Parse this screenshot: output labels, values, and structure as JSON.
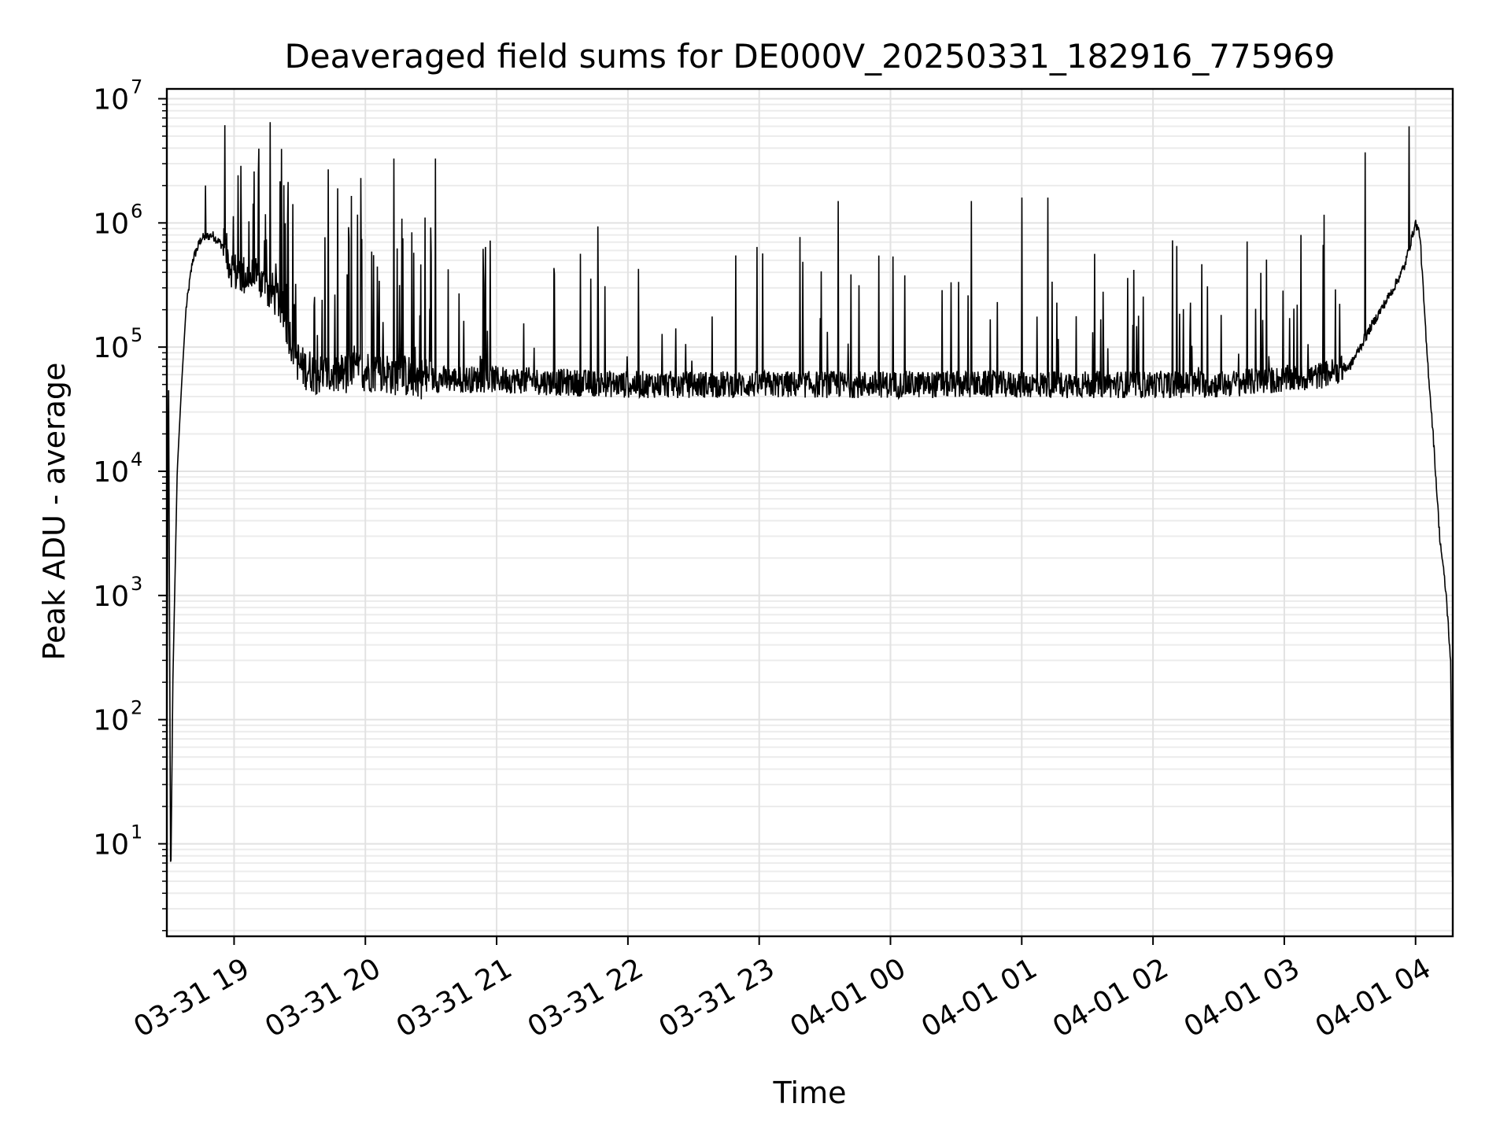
{
  "chart_data": {
    "type": "line",
    "title": "Deaveraged field sums for DE000V_20250331_182916_775969",
    "xlabel": "Time",
    "ylabel": "Peak ADU - average",
    "yscale": "log",
    "ylim": [
      1.8,
      12000000
    ],
    "xlim": [
      "2025-03-31 18:29:16",
      "2025-04-01 04:17:00"
    ],
    "grid": "major and minor",
    "line_color": "#000000",
    "y_ticks": [
      {
        "base": "10",
        "exp": "1",
        "value": 10
      },
      {
        "base": "10",
        "exp": "2",
        "value": 100
      },
      {
        "base": "10",
        "exp": "3",
        "value": 1000
      },
      {
        "base": "10",
        "exp": "4",
        "value": 10000
      },
      {
        "base": "10",
        "exp": "5",
        "value": 100000
      },
      {
        "base": "10",
        "exp": "6",
        "value": 1000000
      },
      {
        "base": "10",
        "exp": "7",
        "value": 10000000
      }
    ],
    "x_ticks": [
      {
        "label": "03-31 19",
        "time": "2025-03-31 19:00"
      },
      {
        "label": "03-31 20",
        "time": "2025-03-31 20:00"
      },
      {
        "label": "03-31 21",
        "time": "2025-03-31 21:00"
      },
      {
        "label": "03-31 22",
        "time": "2025-03-31 22:00"
      },
      {
        "label": "03-31 23",
        "time": "2025-03-31 23:00"
      },
      {
        "label": "04-01 00",
        "time": "2025-04-01 00:00"
      },
      {
        "label": "04-01 01",
        "time": "2025-04-01 01:00"
      },
      {
        "label": "04-01 02",
        "time": "2025-04-01 02:00"
      },
      {
        "label": "04-01 03",
        "time": "2025-04-01 03:00"
      },
      {
        "label": "04-01 04",
        "time": "2025-04-01 04:00"
      }
    ],
    "series": [
      {
        "x": [
          "2025-03-31 18:29",
          "2025-03-31 18:30",
          "2025-03-31 18:31",
          "2025-03-31 18:32",
          "2025-03-31 18:34",
          "2025-03-31 18:36",
          "2025-03-31 18:38",
          "2025-03-31 18:41",
          "2025-03-31 18:45",
          "2025-03-31 18:50",
          "2025-03-31 18:55",
          "2025-03-31 19:00",
          "2025-03-31 19:10",
          "2025-03-31 19:20",
          "2025-03-31 19:30",
          "2025-03-31 19:40",
          "2025-03-31 19:50",
          "2025-03-31 20:00",
          "2025-03-31 20:15",
          "2025-03-31 20:30",
          "2025-03-31 21:00",
          "2025-03-31 21:30",
          "2025-03-31 22:00",
          "2025-03-31 22:30",
          "2025-03-31 23:00",
          "2025-03-31 23:30",
          "2025-04-01 00:00",
          "2025-04-01 00:30",
          "2025-04-01 01:00",
          "2025-04-01 01:30",
          "2025-04-01 02:00",
          "2025-04-01 02:30",
          "2025-04-01 03:00",
          "2025-04-01 03:15",
          "2025-04-01 03:30",
          "2025-04-01 03:40",
          "2025-04-01 03:50",
          "2025-04-01 03:55",
          "2025-04-01 04:00",
          "2025-04-01 04:02",
          "2025-04-01 04:05",
          "2025-04-01 04:08",
          "2025-04-01 04:11",
          "2025-04-01 04:14",
          "2025-04-01 04:16",
          "2025-04-01 04:17"
        ],
        "y": [
          3,
          100000,
          4,
          200,
          10000,
          50000,
          200000,
          500000,
          750000,
          800000,
          650000,
          400000,
          350000,
          250000,
          70000,
          60000,
          60000,
          65000,
          60000,
          55000,
          55000,
          52000,
          50000,
          50000,
          50000,
          50000,
          50000,
          50000,
          50000,
          50000,
          50000,
          50000,
          55000,
          58000,
          70000,
          150000,
          300000,
          450000,
          1000000,
          800000,
          100000,
          20000,
          3000,
          1000,
          300,
          3
        ]
      }
    ],
    "spikes": [
      {
        "time": "2025-03-31 18:47",
        "value": 2000000
      },
      {
        "time": "2025-03-31 19:11",
        "value": 2500000
      },
      {
        "time": "2025-03-31 19:43",
        "value": 2700000
      },
      {
        "time": "2025-03-31 19:58",
        "value": 2300000
      },
      {
        "time": "2025-03-31 20:13",
        "value": 3300000
      },
      {
        "time": "2025-03-31 20:32",
        "value": 3300000
      },
      {
        "time": "2025-03-31 23:36",
        "value": 1500000
      },
      {
        "time": "2025-04-01 00:37",
        "value": 1500000
      },
      {
        "time": "2025-04-01 01:00",
        "value": 1600000
      },
      {
        "time": "2025-04-01 01:12",
        "value": 1600000
      },
      {
        "time": "2025-04-01 03:37",
        "value": 3700000
      },
      {
        "time": "2025-04-01 03:57",
        "value": 6000000
      }
    ]
  }
}
